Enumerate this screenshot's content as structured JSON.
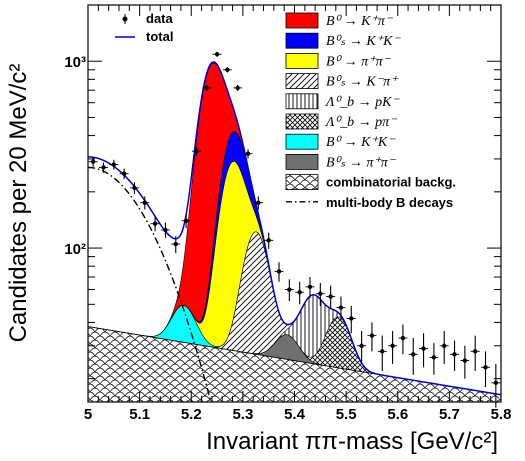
{
  "chart_data": {
    "type": "area",
    "title": "",
    "xlabel": "Invariant  ππ-mass [GeV/c²]",
    "ylabel": "Candidates per 20 MeV/c²",
    "log_y": true,
    "xlim": [
      5.0,
      5.8
    ],
    "ylim": [
      15,
      2000
    ],
    "x_ticks": [
      "5",
      "5.1",
      "5.2",
      "5.3",
      "5.4",
      "5.5",
      "5.6",
      "5.7",
      "5.8"
    ],
    "y_ticks": [
      {
        "value": 100,
        "label": "10²"
      },
      {
        "value": 1000,
        "label": "10³"
      }
    ],
    "legend": [
      {
        "key": "data",
        "label": "data",
        "style": "marker"
      },
      {
        "key": "total",
        "label": "total",
        "style": "line",
        "color": "#0000cc"
      },
      {
        "key": "bkpi",
        "label": "B⁰ → K⁺π⁻",
        "style": "fill",
        "color": "#ff0000"
      },
      {
        "key": "bskk",
        "label": "B⁰ₛ → K⁺K⁻",
        "style": "fill",
        "color": "#0000ff"
      },
      {
        "key": "bpipi",
        "label": "B⁰ → π⁺π⁻",
        "style": "fill",
        "color": "#ffff00"
      },
      {
        "key": "bskpi",
        "label": "B⁰ₛ → K⁻π⁺",
        "style": "hatch-diag"
      },
      {
        "key": "lbpk",
        "label": "Λ⁰_b → pK⁻",
        "style": "hatch-vert"
      },
      {
        "key": "lbppi",
        "label": "Λ⁰_b → pπ⁻",
        "style": "hatch-cross"
      },
      {
        "key": "bkk",
        "label": "B⁰ → K⁺K⁻",
        "style": "fill",
        "color": "#00ffff"
      },
      {
        "key": "bspipi",
        "label": "B⁰ₛ → π⁺π⁻",
        "style": "fill",
        "color": "#707070"
      },
      {
        "key": "comb",
        "label": "combinatorial backg.",
        "style": "hatch-scales"
      },
      {
        "key": "multibody",
        "label": "multi-body B decays",
        "style": "dashdot"
      }
    ],
    "components": {
      "comb": {
        "a": 38.0,
        "b": -1.05
      },
      "multibody": {
        "A": 270.0,
        "tau": 0.045,
        "x0": 5.0
      },
      "peaks": [
        {
          "key": "bkpi",
          "mu": 5.24,
          "sigma": 0.0215,
          "amp": 880
        },
        {
          "key": "bskk",
          "mu": 5.285,
          "sigma": 0.0215,
          "amp": 130
        },
        {
          "key": "bpipi",
          "mu": 5.28,
          "sigma": 0.0215,
          "amp": 250
        },
        {
          "key": "bskpi",
          "mu": 5.325,
          "sigma": 0.022,
          "amp": 95
        },
        {
          "key": "lbpk",
          "mu": 5.435,
          "sigma": 0.022,
          "amp": 30
        },
        {
          "key": "lbppi",
          "mu": 5.485,
          "sigma": 0.022,
          "amp": 20
        },
        {
          "key": "bkk",
          "mu": 5.185,
          "sigma": 0.0215,
          "amp": 18
        },
        {
          "key": "bspipi",
          "mu": 5.385,
          "sigma": 0.0215,
          "amp": 9
        }
      ]
    },
    "data_points": [
      {
        "x": 5.01,
        "y": 290,
        "err": 18
      },
      {
        "x": 5.03,
        "y": 270,
        "err": 17
      },
      {
        "x": 5.05,
        "y": 280,
        "err": 17
      },
      {
        "x": 5.07,
        "y": 250,
        "err": 16
      },
      {
        "x": 5.09,
        "y": 210,
        "err": 15
      },
      {
        "x": 5.11,
        "y": 175,
        "err": 14
      },
      {
        "x": 5.13,
        "y": 135,
        "err": 12
      },
      {
        "x": 5.15,
        "y": 125,
        "err": 12
      },
      {
        "x": 5.17,
        "y": 105,
        "err": 11
      },
      {
        "x": 5.19,
        "y": 140,
        "err": 12
      },
      {
        "x": 5.21,
        "y": 330,
        "err": 18
      },
      {
        "x": 5.23,
        "y": 720,
        "err": 27
      },
      {
        "x": 5.25,
        "y": 1090,
        "err": 33
      },
      {
        "x": 5.27,
        "y": 900,
        "err": 30
      },
      {
        "x": 5.29,
        "y": 720,
        "err": 27
      },
      {
        "x": 5.31,
        "y": 320,
        "err": 18
      },
      {
        "x": 5.33,
        "y": 175,
        "err": 14
      },
      {
        "x": 5.35,
        "y": 110,
        "err": 11
      },
      {
        "x": 5.37,
        "y": 75,
        "err": 9
      },
      {
        "x": 5.39,
        "y": 60,
        "err": 8
      },
      {
        "x": 5.41,
        "y": 58,
        "err": 8
      },
      {
        "x": 5.43,
        "y": 62,
        "err": 8
      },
      {
        "x": 5.45,
        "y": 57,
        "err": 8
      },
      {
        "x": 5.47,
        "y": 55,
        "err": 8
      },
      {
        "x": 5.49,
        "y": 48,
        "err": 7
      },
      {
        "x": 5.51,
        "y": 42,
        "err": 7
      },
      {
        "x": 5.53,
        "y": 30,
        "err": 6
      },
      {
        "x": 5.55,
        "y": 34,
        "err": 6
      },
      {
        "x": 5.57,
        "y": 28,
        "err": 6
      },
      {
        "x": 5.59,
        "y": 30,
        "err": 6
      },
      {
        "x": 5.61,
        "y": 33,
        "err": 6
      },
      {
        "x": 5.63,
        "y": 27,
        "err": 6
      },
      {
        "x": 5.65,
        "y": 29,
        "err": 6
      },
      {
        "x": 5.67,
        "y": 26,
        "err": 5
      },
      {
        "x": 5.69,
        "y": 30,
        "err": 6
      },
      {
        "x": 5.71,
        "y": 27,
        "err": 5
      },
      {
        "x": 5.73,
        "y": 25,
        "err": 5
      },
      {
        "x": 5.75,
        "y": 28,
        "err": 6
      },
      {
        "x": 5.77,
        "y": 23,
        "err": 5
      },
      {
        "x": 5.79,
        "y": 19,
        "err": 5
      }
    ]
  }
}
